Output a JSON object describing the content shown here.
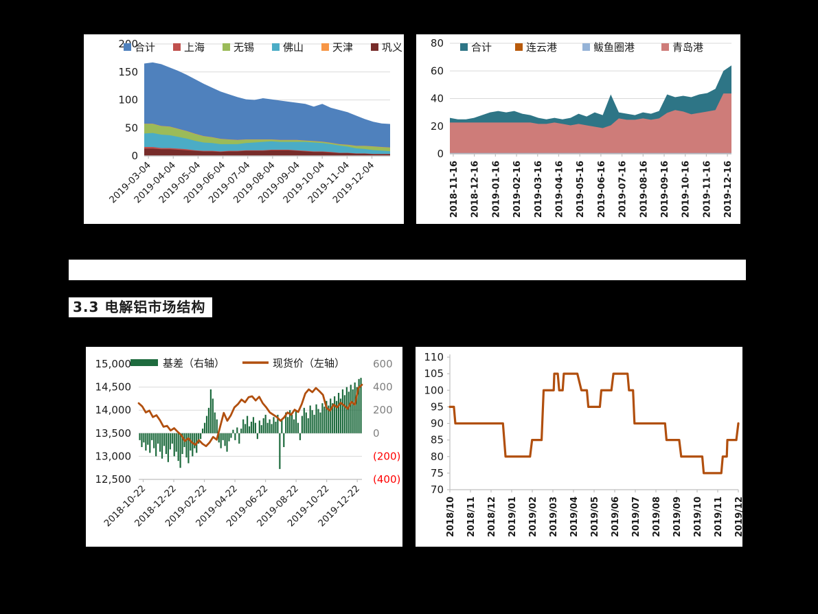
{
  "page": {
    "background": "#000000",
    "heading": "3.3 电解铝市场结构"
  },
  "chart_data": [
    {
      "id": "social-inventory",
      "type": "area",
      "legend": [
        {
          "label": "合计",
          "color": "#4F81BD"
        },
        {
          "label": "上海",
          "color": "#C0504D"
        },
        {
          "label": "无锡",
          "color": "#9BBB59"
        },
        {
          "label": "佛山",
          "color": "#4BACC6"
        },
        {
          "label": "天津",
          "color": "#F79646"
        },
        {
          "label": "巩义",
          "color": "#772C2A"
        }
      ],
      "ylim": [
        0,
        200
      ],
      "y_ticks": [
        "0",
        "50",
        "100",
        "150",
        "200"
      ],
      "x_labels": [
        "2019-03-04",
        "2019-04-04",
        "2019-05-04",
        "2019-06-04",
        "2019-07-04",
        "2019-08-04",
        "2019-09-04",
        "2019-10-04",
        "2019-11-04",
        "2019-12-04"
      ],
      "total_color": "#4F81BD",
      "total": [
        165,
        167,
        164,
        158,
        152,
        145,
        137,
        129,
        122,
        115,
        110,
        105,
        101,
        100,
        103,
        101,
        99,
        97,
        95,
        93,
        88,
        93,
        86,
        82,
        78,
        72,
        66,
        61,
        58,
        57
      ],
      "layers": [
        {
          "name": "巩义",
          "color": "#772C2A",
          "values": [
            13,
            13,
            12,
            12,
            11,
            10,
            9,
            8,
            8,
            7,
            8,
            8,
            9,
            9,
            9,
            10,
            10,
            10,
            9,
            8,
            7,
            7,
            6,
            5,
            5,
            4,
            4,
            3,
            3,
            3
          ]
        },
        {
          "name": "上海",
          "color": "#C0504D",
          "values": [
            3,
            3,
            2,
            2,
            2,
            2,
            1,
            1,
            1,
            1,
            1,
            1,
            1,
            1,
            1,
            1,
            1,
            1,
            1,
            1,
            1,
            1,
            1,
            0.5,
            0.5,
            0.5,
            0.5,
            0.5,
            0.5,
            0.5
          ]
        },
        {
          "name": "佛山",
          "color": "#4BACC6",
          "values": [
            24,
            25,
            24,
            23,
            21,
            19,
            17,
            15,
            14,
            13,
            12,
            12,
            13,
            14,
            15,
            15,
            14,
            14,
            15,
            16,
            16,
            15,
            14,
            13,
            11,
            9,
            8,
            7,
            6,
            5
          ]
        },
        {
          "name": "无锡",
          "color": "#9BBB59",
          "values": [
            17,
            16,
            15,
            15,
            14,
            13,
            12,
            11,
            10,
            9,
            8,
            7,
            6,
            5,
            4,
            3,
            3,
            3,
            3,
            2,
            2,
            2,
            2,
            2,
            3,
            4,
            5,
            6,
            6,
            6
          ]
        },
        {
          "name": "天津",
          "color": "#F79646",
          "values": [
            0.5
          ]
        }
      ]
    },
    {
      "id": "port-inventory",
      "type": "area",
      "legend": [
        {
          "label": "合计",
          "color": "#2E7586"
        },
        {
          "label": "连云港",
          "color": "#B85A0B"
        },
        {
          "label": "鲅鱼圈港",
          "color": "#95B3D7"
        },
        {
          "label": "青岛港",
          "color": "#CE7C79"
        }
      ],
      "ylim": [
        0,
        80
      ],
      "y_ticks": [
        "0",
        "20",
        "40",
        "60",
        "80"
      ],
      "x_labels": [
        "2018-11-16",
        "2018-12-16",
        "2019-01-16",
        "2019-02-16",
        "2019-03-16",
        "2019-04-16",
        "2019-05-16",
        "2019-06-16",
        "2019-07-16",
        "2019-08-16",
        "2019-09-16",
        "2019-10-16",
        "2019-11-16",
        "2019-12-16"
      ],
      "total_color": "#2E7586",
      "total": [
        26,
        25,
        25,
        26,
        28,
        30,
        31,
        30,
        31,
        29,
        28,
        26,
        25,
        26,
        25,
        26,
        29,
        27,
        30,
        28,
        43,
        30,
        29,
        28,
        30,
        29,
        31,
        43,
        41,
        42,
        41,
        43,
        44,
        47,
        60,
        64
      ],
      "layers": [
        {
          "name": "连云港",
          "color": "#B85A0B",
          "values": [
            0.15
          ]
        },
        {
          "name": "鲅鱼圈港",
          "color": "#95B3D7",
          "values": [
            0.5
          ]
        },
        {
          "name": "青岛港",
          "color": "#CE7C79",
          "values": [
            22,
            22,
            22,
            22,
            22,
            22,
            22,
            22,
            22,
            22,
            22,
            21,
            21,
            22,
            21,
            20,
            21,
            20,
            19,
            18,
            20,
            25,
            24,
            24,
            25,
            24,
            25,
            29,
            31,
            30,
            28,
            29,
            30,
            31,
            43,
            43
          ]
        }
      ]
    },
    {
      "id": "basis-spot",
      "type": "combo",
      "legend": [
        {
          "label": "基差（右轴）",
          "color": "#1E6B3E",
          "kind": "bar"
        },
        {
          "label": "现货价（左轴）",
          "color": "#B14F0E",
          "kind": "line"
        }
      ],
      "left_lim": [
        12500,
        15000
      ],
      "left_ticks": [
        "15,000",
        "14,500",
        "14,000",
        "13,500",
        "13,000",
        "12,500"
      ],
      "right_lim": [
        -400,
        600
      ],
      "right_ticks": [
        {
          "label": "600",
          "color": "#808080"
        },
        {
          "label": "400",
          "color": "#808080"
        },
        {
          "label": "200",
          "color": "#808080"
        },
        {
          "label": "0",
          "color": "#808080"
        },
        {
          "label": "(200)",
          "color": "#FF0000"
        },
        {
          "label": "(400)",
          "color": "#FF0000"
        }
      ],
      "x_labels": [
        "2018-10-22",
        "2018-12-22",
        "2019-02-22",
        "2019-04-22",
        "2019-06-22",
        "2019-08-22",
        "2019-10-22",
        "2019-12-22"
      ],
      "bar_color": "#1E6B3E",
      "bars": [
        -60,
        -120,
        -80,
        -150,
        -100,
        -170,
        -60,
        -130,
        -200,
        -90,
        -160,
        -220,
        -110,
        -180,
        -250,
        -140,
        -90,
        -200,
        -160,
        -240,
        -300,
        -180,
        -120,
        -210,
        -260,
        -150,
        -200,
        -130,
        -170,
        -90,
        -50,
        40,
        90,
        150,
        220,
        380,
        300,
        180,
        120,
        -80,
        -130,
        -60,
        -110,
        -160,
        -70,
        -40,
        30,
        -60,
        50,
        -90,
        40,
        120,
        80,
        150,
        60,
        100,
        140,
        90,
        -50,
        110,
        70,
        130,
        160,
        90,
        120,
        80,
        140,
        100,
        160,
        -310,
        120,
        -120,
        180,
        140,
        200,
        160,
        120,
        200,
        90,
        -60,
        150,
        220,
        180,
        130,
        240,
        200,
        160,
        250,
        210,
        180,
        260,
        230,
        280,
        240,
        300,
        260,
        320,
        280,
        350,
        300,
        380,
        330,
        400,
        360,
        420,
        380,
        440,
        400,
        470,
        480
      ],
      "line_color": "#B14F0E",
      "line": [
        14150,
        14080,
        13950,
        13990,
        13850,
        13890,
        13780,
        13640,
        13660,
        13560,
        13610,
        13530,
        13460,
        13330,
        13390,
        13300,
        13250,
        13350,
        13270,
        13220,
        13300,
        13420,
        13360,
        13650,
        13940,
        13770,
        13890,
        14060,
        14130,
        14230,
        14170,
        14280,
        14300,
        14210,
        14290,
        14150,
        14060,
        13950,
        13900,
        13850,
        13770,
        13840,
        13950,
        13900,
        14010,
        13960,
        14130,
        14360,
        14450,
        14390,
        14480,
        14410,
        14330,
        14050,
        13990,
        14120,
        14060,
        14160,
        14100,
        14030,
        14180,
        14120,
        14480,
        14550
      ]
    },
    {
      "id": "price-ratio",
      "type": "step-line",
      "color": "#B14F0E",
      "ylim": [
        70,
        110
      ],
      "y_ticks": [
        "70",
        "75",
        "80",
        "85",
        "90",
        "95",
        "100",
        "105",
        "110"
      ],
      "x_labels": [
        "2018/10",
        "2018/11",
        "2018/12",
        "2019/01",
        "2019/02",
        "2019/03",
        "2019/04",
        "2019/05",
        "2019/06",
        "2019/07",
        "2019/08",
        "2019/09",
        "2019/10",
        "2019/11",
        "2019/12"
      ],
      "steps": [
        [
          0,
          95
        ],
        [
          0.014,
          95
        ],
        [
          0.019,
          90
        ],
        [
          0.184,
          90
        ],
        [
          0.193,
          80
        ],
        [
          0.278,
          80
        ],
        [
          0.285,
          85
        ],
        [
          0.318,
          85
        ],
        [
          0.325,
          100
        ],
        [
          0.36,
          100
        ],
        [
          0.362,
          105
        ],
        [
          0.374,
          105
        ],
        [
          0.379,
          100
        ],
        [
          0.391,
          100
        ],
        [
          0.395,
          105
        ],
        [
          0.442,
          105
        ],
        [
          0.456,
          100
        ],
        [
          0.475,
          100
        ],
        [
          0.48,
          95
        ],
        [
          0.52,
          95
        ],
        [
          0.525,
          100
        ],
        [
          0.56,
          100
        ],
        [
          0.567,
          105
        ],
        [
          0.616,
          105
        ],
        [
          0.621,
          100
        ],
        [
          0.635,
          100
        ],
        [
          0.64,
          90
        ],
        [
          0.746,
          90
        ],
        [
          0.751,
          85
        ],
        [
          0.795,
          85
        ],
        [
          0.802,
          80
        ],
        [
          0.875,
          80
        ],
        [
          0.88,
          75
        ],
        [
          0.941,
          75
        ],
        [
          0.946,
          80
        ],
        [
          0.96,
          80
        ],
        [
          0.962,
          85
        ],
        [
          0.993,
          85
        ],
        [
          1,
          90
        ]
      ]
    }
  ]
}
